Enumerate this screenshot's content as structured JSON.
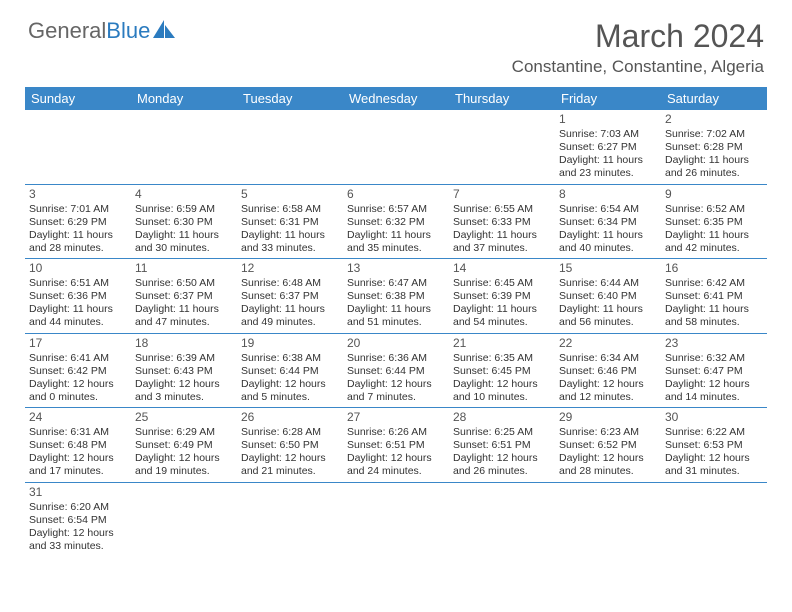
{
  "logo": {
    "part1": "General",
    "part2": "Blue"
  },
  "title": "March 2024",
  "subtitle": "Constantine, Constantine, Algeria",
  "theme": {
    "header_bg": "#3a87c8",
    "header_fg": "#ffffff",
    "rule": "#3a87c8",
    "text": "#333333",
    "title_color": "#555555"
  },
  "weekdays": [
    "Sunday",
    "Monday",
    "Tuesday",
    "Wednesday",
    "Thursday",
    "Friday",
    "Saturday"
  ],
  "weeks": [
    [
      null,
      null,
      null,
      null,
      null,
      {
        "n": "1",
        "sr": "Sunrise: 7:03 AM",
        "ss": "Sunset: 6:27 PM",
        "d1": "Daylight: 11 hours",
        "d2": "and 23 minutes."
      },
      {
        "n": "2",
        "sr": "Sunrise: 7:02 AM",
        "ss": "Sunset: 6:28 PM",
        "d1": "Daylight: 11 hours",
        "d2": "and 26 minutes."
      }
    ],
    [
      {
        "n": "3",
        "sr": "Sunrise: 7:01 AM",
        "ss": "Sunset: 6:29 PM",
        "d1": "Daylight: 11 hours",
        "d2": "and 28 minutes."
      },
      {
        "n": "4",
        "sr": "Sunrise: 6:59 AM",
        "ss": "Sunset: 6:30 PM",
        "d1": "Daylight: 11 hours",
        "d2": "and 30 minutes."
      },
      {
        "n": "5",
        "sr": "Sunrise: 6:58 AM",
        "ss": "Sunset: 6:31 PM",
        "d1": "Daylight: 11 hours",
        "d2": "and 33 minutes."
      },
      {
        "n": "6",
        "sr": "Sunrise: 6:57 AM",
        "ss": "Sunset: 6:32 PM",
        "d1": "Daylight: 11 hours",
        "d2": "and 35 minutes."
      },
      {
        "n": "7",
        "sr": "Sunrise: 6:55 AM",
        "ss": "Sunset: 6:33 PM",
        "d1": "Daylight: 11 hours",
        "d2": "and 37 minutes."
      },
      {
        "n": "8",
        "sr": "Sunrise: 6:54 AM",
        "ss": "Sunset: 6:34 PM",
        "d1": "Daylight: 11 hours",
        "d2": "and 40 minutes."
      },
      {
        "n": "9",
        "sr": "Sunrise: 6:52 AM",
        "ss": "Sunset: 6:35 PM",
        "d1": "Daylight: 11 hours",
        "d2": "and 42 minutes."
      }
    ],
    [
      {
        "n": "10",
        "sr": "Sunrise: 6:51 AM",
        "ss": "Sunset: 6:36 PM",
        "d1": "Daylight: 11 hours",
        "d2": "and 44 minutes."
      },
      {
        "n": "11",
        "sr": "Sunrise: 6:50 AM",
        "ss": "Sunset: 6:37 PM",
        "d1": "Daylight: 11 hours",
        "d2": "and 47 minutes."
      },
      {
        "n": "12",
        "sr": "Sunrise: 6:48 AM",
        "ss": "Sunset: 6:37 PM",
        "d1": "Daylight: 11 hours",
        "d2": "and 49 minutes."
      },
      {
        "n": "13",
        "sr": "Sunrise: 6:47 AM",
        "ss": "Sunset: 6:38 PM",
        "d1": "Daylight: 11 hours",
        "d2": "and 51 minutes."
      },
      {
        "n": "14",
        "sr": "Sunrise: 6:45 AM",
        "ss": "Sunset: 6:39 PM",
        "d1": "Daylight: 11 hours",
        "d2": "and 54 minutes."
      },
      {
        "n": "15",
        "sr": "Sunrise: 6:44 AM",
        "ss": "Sunset: 6:40 PM",
        "d1": "Daylight: 11 hours",
        "d2": "and 56 minutes."
      },
      {
        "n": "16",
        "sr": "Sunrise: 6:42 AM",
        "ss": "Sunset: 6:41 PM",
        "d1": "Daylight: 11 hours",
        "d2": "and 58 minutes."
      }
    ],
    [
      {
        "n": "17",
        "sr": "Sunrise: 6:41 AM",
        "ss": "Sunset: 6:42 PM",
        "d1": "Daylight: 12 hours",
        "d2": "and 0 minutes."
      },
      {
        "n": "18",
        "sr": "Sunrise: 6:39 AM",
        "ss": "Sunset: 6:43 PM",
        "d1": "Daylight: 12 hours",
        "d2": "and 3 minutes."
      },
      {
        "n": "19",
        "sr": "Sunrise: 6:38 AM",
        "ss": "Sunset: 6:44 PM",
        "d1": "Daylight: 12 hours",
        "d2": "and 5 minutes."
      },
      {
        "n": "20",
        "sr": "Sunrise: 6:36 AM",
        "ss": "Sunset: 6:44 PM",
        "d1": "Daylight: 12 hours",
        "d2": "and 7 minutes."
      },
      {
        "n": "21",
        "sr": "Sunrise: 6:35 AM",
        "ss": "Sunset: 6:45 PM",
        "d1": "Daylight: 12 hours",
        "d2": "and 10 minutes."
      },
      {
        "n": "22",
        "sr": "Sunrise: 6:34 AM",
        "ss": "Sunset: 6:46 PM",
        "d1": "Daylight: 12 hours",
        "d2": "and 12 minutes."
      },
      {
        "n": "23",
        "sr": "Sunrise: 6:32 AM",
        "ss": "Sunset: 6:47 PM",
        "d1": "Daylight: 12 hours",
        "d2": "and 14 minutes."
      }
    ],
    [
      {
        "n": "24",
        "sr": "Sunrise: 6:31 AM",
        "ss": "Sunset: 6:48 PM",
        "d1": "Daylight: 12 hours",
        "d2": "and 17 minutes."
      },
      {
        "n": "25",
        "sr": "Sunrise: 6:29 AM",
        "ss": "Sunset: 6:49 PM",
        "d1": "Daylight: 12 hours",
        "d2": "and 19 minutes."
      },
      {
        "n": "26",
        "sr": "Sunrise: 6:28 AM",
        "ss": "Sunset: 6:50 PM",
        "d1": "Daylight: 12 hours",
        "d2": "and 21 minutes."
      },
      {
        "n": "27",
        "sr": "Sunrise: 6:26 AM",
        "ss": "Sunset: 6:51 PM",
        "d1": "Daylight: 12 hours",
        "d2": "and 24 minutes."
      },
      {
        "n": "28",
        "sr": "Sunrise: 6:25 AM",
        "ss": "Sunset: 6:51 PM",
        "d1": "Daylight: 12 hours",
        "d2": "and 26 minutes."
      },
      {
        "n": "29",
        "sr": "Sunrise: 6:23 AM",
        "ss": "Sunset: 6:52 PM",
        "d1": "Daylight: 12 hours",
        "d2": "and 28 minutes."
      },
      {
        "n": "30",
        "sr": "Sunrise: 6:22 AM",
        "ss": "Sunset: 6:53 PM",
        "d1": "Daylight: 12 hours",
        "d2": "and 31 minutes."
      }
    ],
    [
      {
        "n": "31",
        "sr": "Sunrise: 6:20 AM",
        "ss": "Sunset: 6:54 PM",
        "d1": "Daylight: 12 hours",
        "d2": "and 33 minutes."
      },
      null,
      null,
      null,
      null,
      null,
      null
    ]
  ]
}
